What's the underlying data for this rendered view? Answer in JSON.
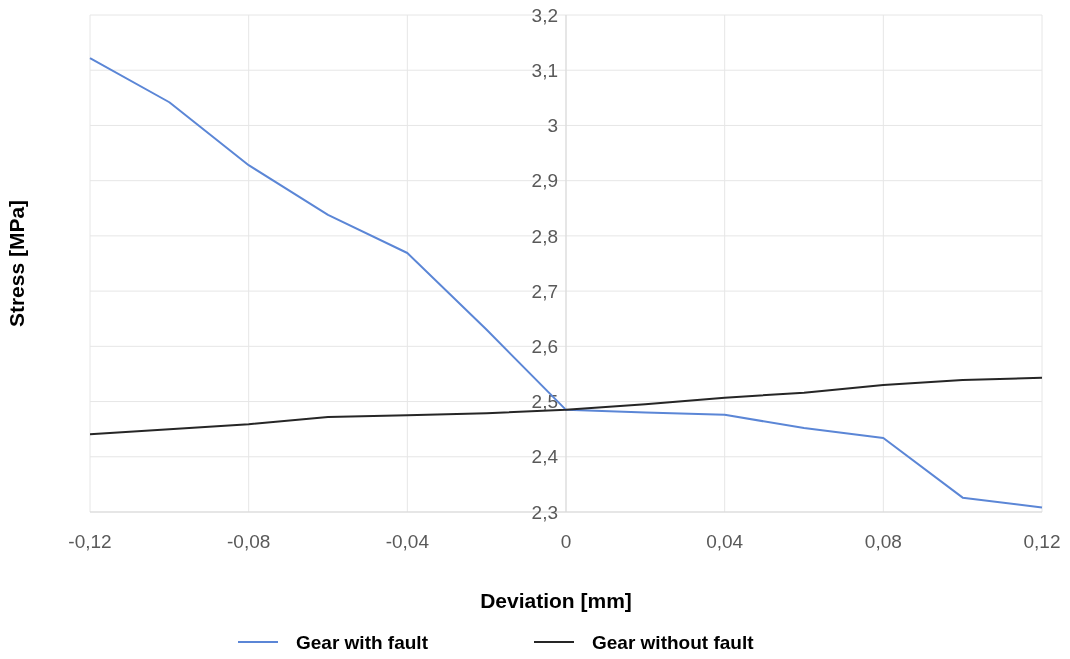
{
  "chart_data": {
    "type": "line",
    "xlabel": "Deviation [mm]",
    "ylabel": "Stress [MPa]",
    "x": [
      -0.12,
      -0.1,
      -0.08,
      -0.06,
      -0.04,
      -0.02,
      0,
      0.02,
      0.04,
      0.06,
      0.08,
      0.1,
      0.12
    ],
    "series": [
      {
        "name": "Gear with fault",
        "color": "#5b86d6",
        "values": [
          3.122,
          3.042,
          2.928,
          2.838,
          2.769,
          2.63,
          2.485,
          2.48,
          2.476,
          2.452,
          2.434,
          2.326,
          2.308
        ]
      },
      {
        "name": "Gear without fault",
        "color": "#262626",
        "values": [
          2.441,
          2.45,
          2.459,
          2.472,
          2.475,
          2.479,
          2.485,
          2.495,
          2.507,
          2.516,
          2.53,
          2.539,
          2.543
        ]
      }
    ],
    "xlim": [
      -0.12,
      0.12
    ],
    "ylim": [
      2.3,
      3.2
    ],
    "xticks": [
      {
        "value": -0.12,
        "label": "-0,12"
      },
      {
        "value": -0.08,
        "label": "-0,08"
      },
      {
        "value": -0.04,
        "label": "-0,04"
      },
      0,
      {
        "value": 0.04,
        "label": "0,04"
      },
      {
        "value": 0.08,
        "label": "0,08"
      },
      {
        "value": 0.12,
        "label": "0,12"
      }
    ],
    "yticks": [
      {
        "value": 2.3,
        "label": "2,3"
      },
      {
        "value": 2.4,
        "label": "2,4"
      },
      {
        "value": 2.5,
        "label": "2,5"
      },
      {
        "value": 2.6,
        "label": "2,6"
      },
      {
        "value": 2.7,
        "label": "2,7"
      },
      {
        "value": 2.8,
        "label": "2,8"
      },
      {
        "value": 2.9,
        "label": "2,9"
      },
      3,
      {
        "value": 3.1,
        "label": "3,1"
      },
      {
        "value": 3.2,
        "label": "3,2"
      }
    ],
    "grid": true,
    "legend": "bottom",
    "marker": "none",
    "line_style": "solid"
  }
}
